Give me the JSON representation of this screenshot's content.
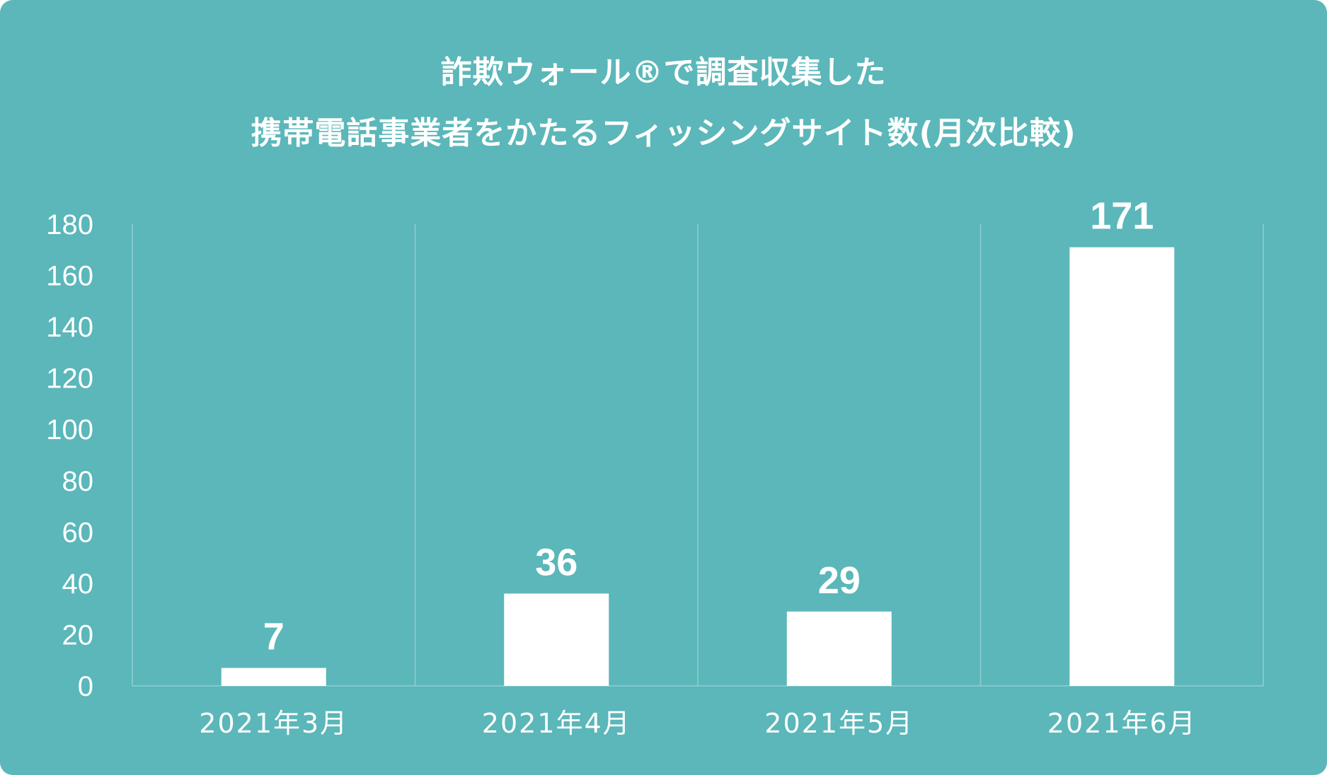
{
  "colors": {
    "background": "#5bb7b9",
    "bar": "#ffffff",
    "text": "#ffffff",
    "gridline": "#8fd0d1"
  },
  "title": {
    "line1": "詐欺ウォール®で調査収集した",
    "line2": "携帯電話事業者をかたるフィッシングサイト数(月次比較)"
  },
  "chart_data": {
    "type": "bar",
    "title": "詐欺ウォール®で調査収集した 携帯電話事業者をかたるフィッシングサイト数(月次比較)",
    "categories": [
      "2021年3月",
      "2021年4月",
      "2021年5月",
      "2021年6月"
    ],
    "values": [
      7,
      36,
      29,
      171
    ],
    "ylim": [
      0,
      180
    ],
    "yticks": [
      0,
      20,
      40,
      60,
      80,
      100,
      120,
      140,
      160,
      180
    ],
    "xlabel": "",
    "ylabel": "",
    "data_labels": true,
    "grid": "vertical category separators",
    "legend": "none"
  }
}
